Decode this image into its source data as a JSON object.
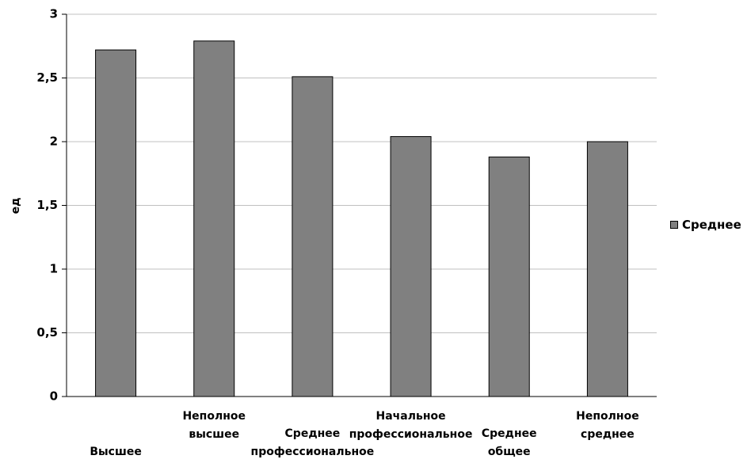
{
  "chart_data": {
    "type": "bar",
    "title": "",
    "xlabel": "",
    "ylabel": "ед",
    "ylim": [
      0,
      3
    ],
    "yticks": [
      "0",
      "0,5",
      "1",
      "1,5",
      "2",
      "2,5",
      "3"
    ],
    "categories": [
      [
        "Высшее"
      ],
      [
        "Неполное",
        "высшее"
      ],
      [
        "Среднее",
        "профессиональное"
      ],
      [
        "Начальное",
        "профессиональное"
      ],
      [
        "Среднее",
        "общее"
      ],
      [
        "Неполное",
        "среднее"
      ]
    ],
    "series": [
      {
        "name": "Среднее",
        "values": [
          2.72,
          2.79,
          2.51,
          2.04,
          1.88,
          2.0
        ]
      }
    ],
    "grid": true,
    "legend_position": "right",
    "colors": {
      "bar": "#808080",
      "grid": "#c0c0c0",
      "axis": "#000000"
    }
  }
}
